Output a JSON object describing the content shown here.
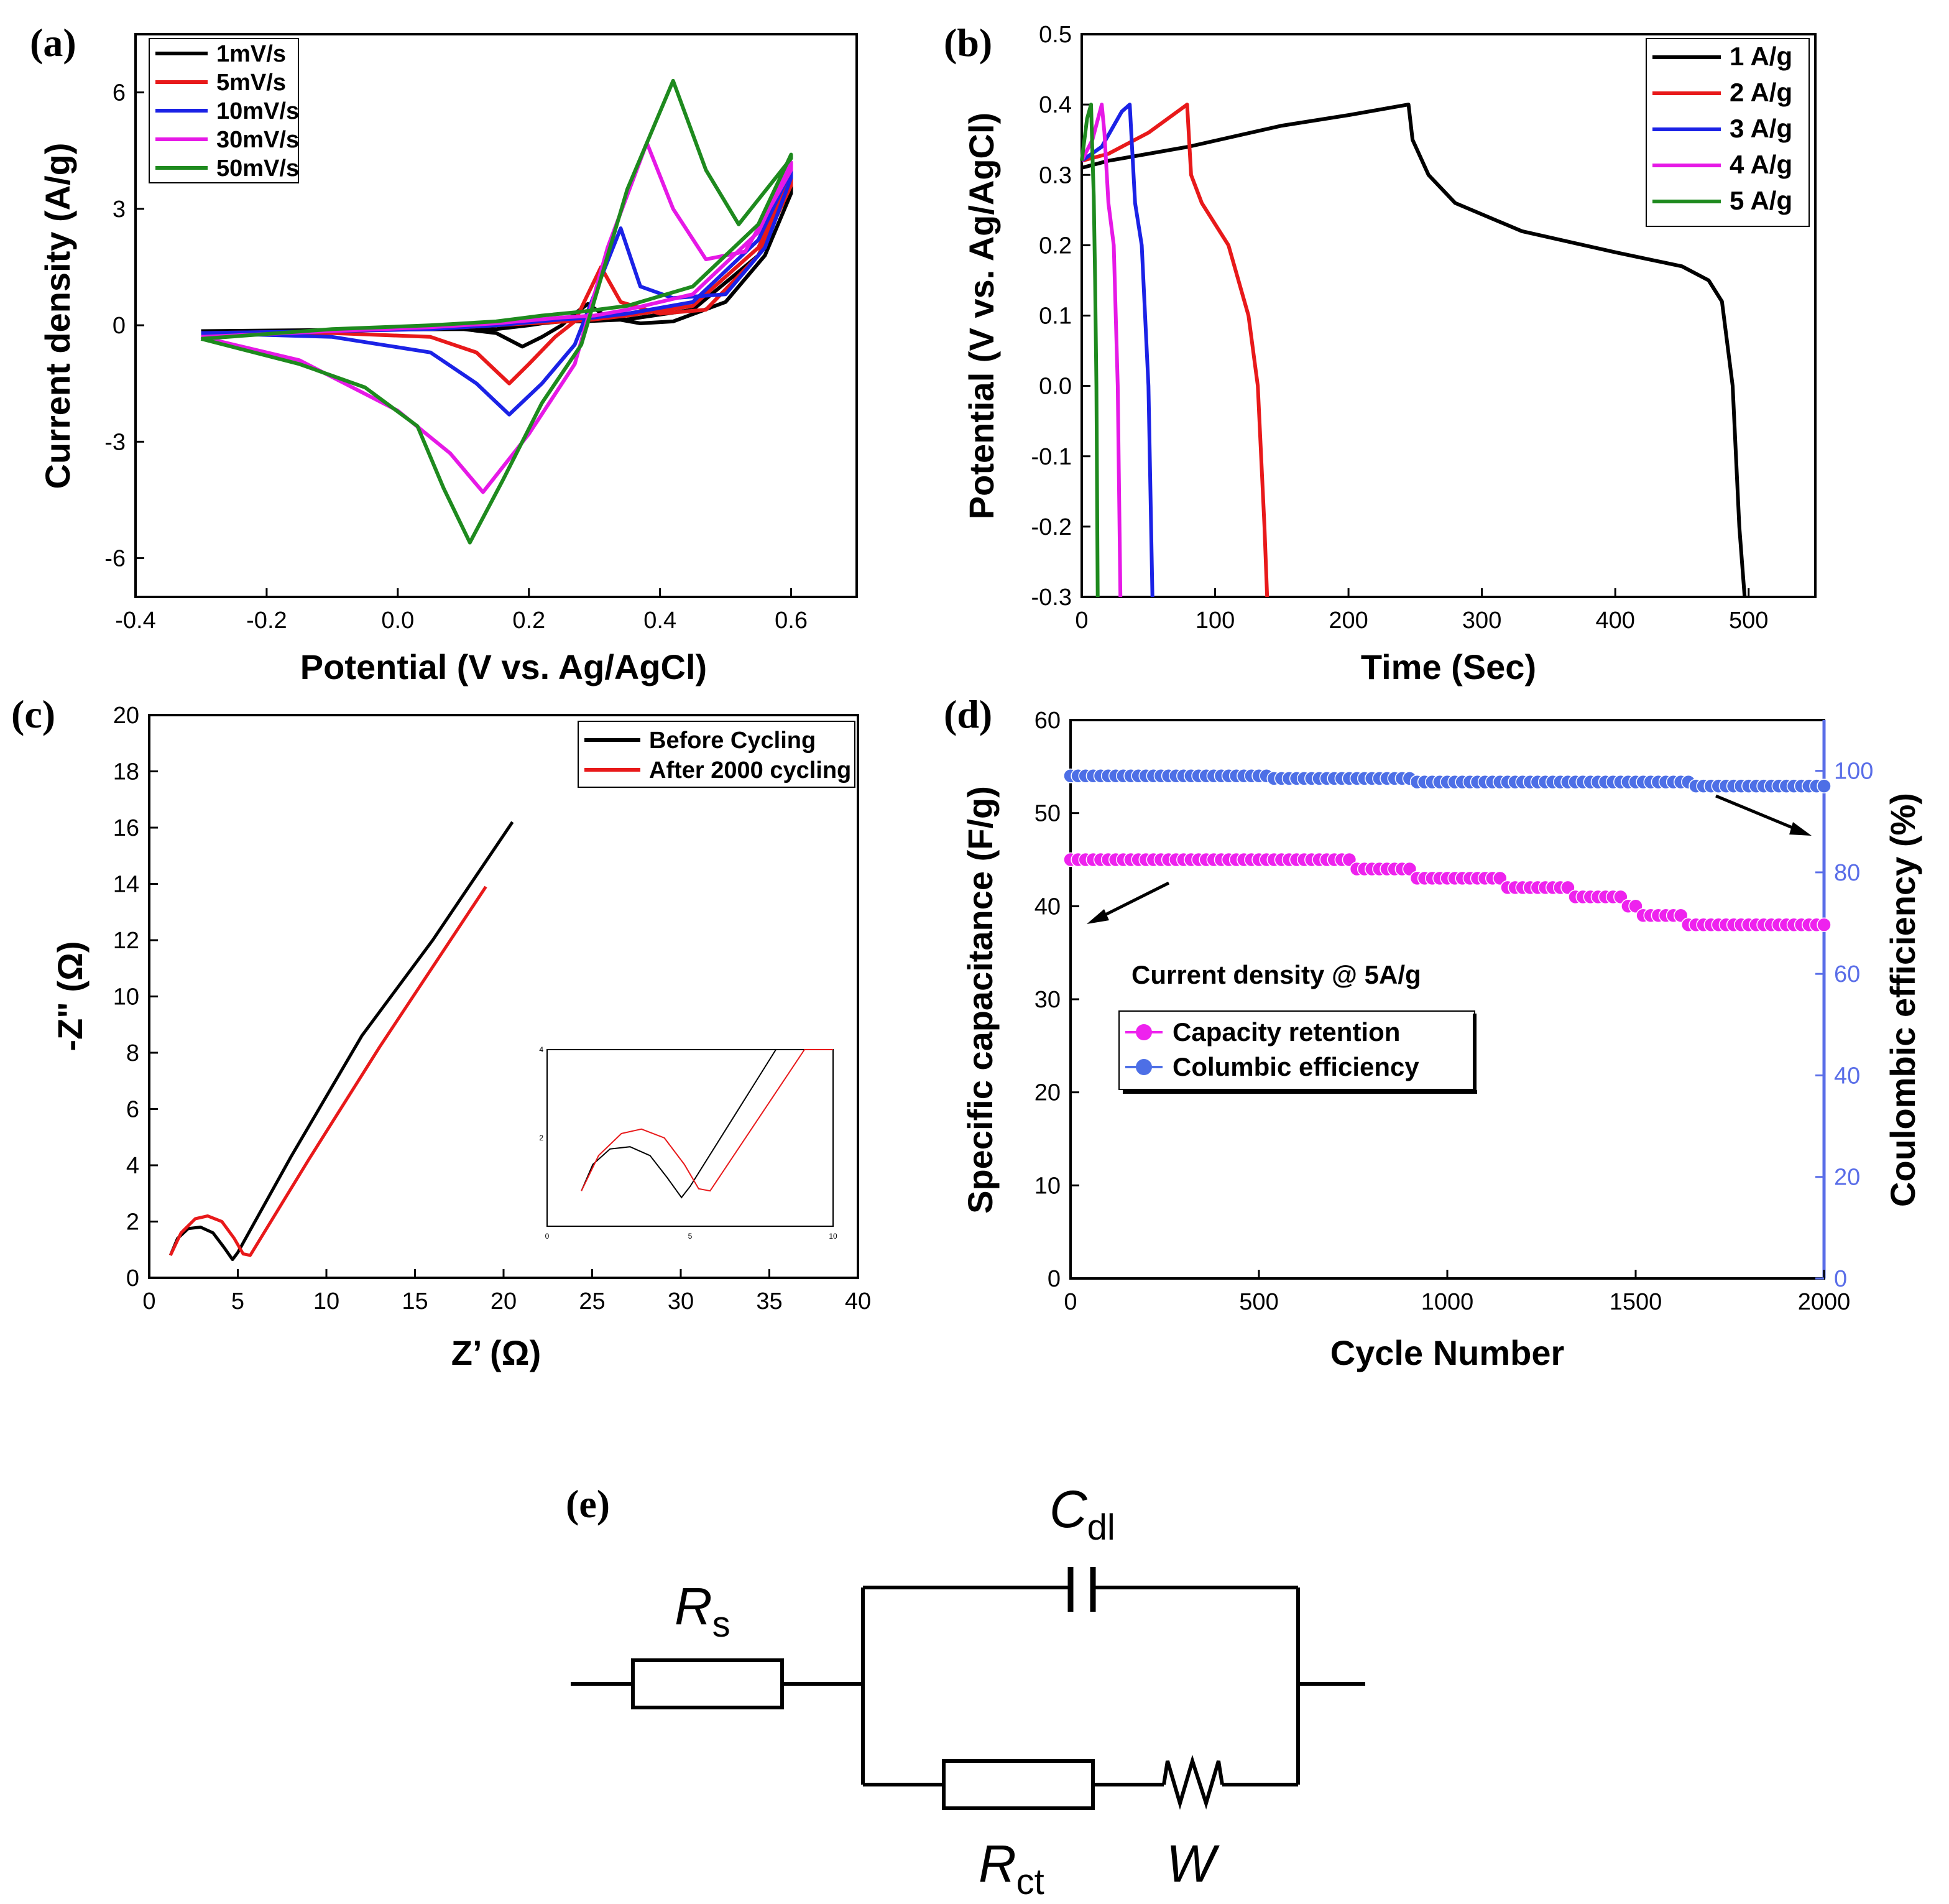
{
  "chart_data": [
    {
      "panel": "(a)",
      "type": "line",
      "xlabel": "Potential (V vs. Ag/AgCl)",
      "ylabel": "Current density (A/g)",
      "xlim": [
        -0.4,
        0.7
      ],
      "ylim": [
        -7,
        7.5
      ],
      "xticks": [
        -0.4,
        -0.2,
        0.0,
        0.2,
        0.4,
        0.6
      ],
      "yticks": [
        -6,
        -3,
        0,
        3,
        6
      ],
      "xtick_labels": [
        "-0.4",
        "-0.2",
        "0.0",
        "0.2",
        "0.4",
        "0.6"
      ],
      "ytick_labels": [
        "-6",
        "-3",
        "0",
        "3",
        "6"
      ],
      "legend_position": "top-left",
      "series": [
        {
          "name": "1mV/s",
          "color": "#000000",
          "x": [
            -0.3,
            -0.1,
            0.1,
            0.15,
            0.19,
            0.22,
            0.25,
            0.27,
            0.29,
            0.32,
            0.37,
            0.42,
            0.5,
            0.56,
            0.6,
            0.6,
            0.55,
            0.45,
            0.35,
            0.28,
            0.25,
            0.22,
            0.2,
            0.15,
            0.05,
            -0.1,
            -0.3
          ],
          "y": [
            -0.15,
            -0.12,
            -0.1,
            -0.2,
            -0.55,
            -0.3,
            0.0,
            0.3,
            0.55,
            0.2,
            0.05,
            0.1,
            0.6,
            1.8,
            3.4,
            3.6,
            1.8,
            0.4,
            0.15,
            0.1,
            0.1,
            0.05,
            0.0,
            -0.1,
            -0.1,
            -0.12,
            -0.15
          ]
        },
        {
          "name": "5mV/s",
          "color": "#e8191a",
          "x": [
            -0.3,
            -0.1,
            0.05,
            0.12,
            0.17,
            0.2,
            0.24,
            0.27,
            0.29,
            0.31,
            0.34,
            0.4,
            0.47,
            0.55,
            0.6,
            0.6,
            0.55,
            0.45,
            0.35,
            0.3,
            0.26,
            0.2,
            0.1,
            0.0,
            -0.1,
            -0.3
          ],
          "y": [
            -0.2,
            -0.2,
            -0.3,
            -0.7,
            -1.5,
            -1.0,
            -0.3,
            0.1,
            0.8,
            1.5,
            0.6,
            0.3,
            0.4,
            1.8,
            3.6,
            3.8,
            2.0,
            0.5,
            0.25,
            0.15,
            0.1,
            0.05,
            -0.05,
            -0.1,
            -0.15,
            -0.2
          ]
        },
        {
          "name": "10mV/s",
          "color": "#1b22e6",
          "x": [
            -0.3,
            -0.1,
            0.05,
            0.12,
            0.17,
            0.22,
            0.27,
            0.3,
            0.34,
            0.37,
            0.42,
            0.5,
            0.56,
            0.6,
            0.6,
            0.55,
            0.45,
            0.35,
            0.3,
            0.25,
            0.15,
            0.05,
            -0.1,
            -0.3
          ],
          "y": [
            -0.2,
            -0.3,
            -0.7,
            -1.5,
            -2.3,
            -1.5,
            -0.5,
            0.8,
            2.5,
            1.0,
            0.7,
            0.8,
            2.0,
            3.8,
            4.0,
            2.2,
            0.6,
            0.3,
            0.2,
            0.15,
            0.0,
            -0.1,
            -0.15,
            -0.2
          ]
        },
        {
          "name": "30mV/s",
          "color": "#e619e6",
          "x": [
            -0.3,
            -0.15,
            0.0,
            0.08,
            0.13,
            0.2,
            0.27,
            0.32,
            0.38,
            0.42,
            0.47,
            0.53,
            0.6,
            0.6,
            0.55,
            0.45,
            0.35,
            0.3,
            0.25,
            0.15,
            0.05,
            -0.1,
            -0.3
          ],
          "y": [
            -0.3,
            -0.9,
            -2.2,
            -3.3,
            -4.3,
            -2.8,
            -1.0,
            2.0,
            4.7,
            3.0,
            1.7,
            1.9,
            4.0,
            4.2,
            2.4,
            0.8,
            0.4,
            0.25,
            0.2,
            0.05,
            -0.05,
            -0.15,
            -0.3
          ]
        },
        {
          "name": "50mV/s",
          "color": "#1e8a1e",
          "x": [
            -0.3,
            -0.15,
            -0.05,
            0.03,
            0.07,
            0.11,
            0.16,
            0.22,
            0.28,
            0.35,
            0.42,
            0.47,
            0.52,
            0.6,
            0.6,
            0.55,
            0.45,
            0.35,
            0.28,
            0.22,
            0.15,
            0.05,
            -0.1,
            -0.3
          ],
          "y": [
            -0.35,
            -1.0,
            -1.6,
            -2.6,
            -4.2,
            -5.6,
            -4.0,
            -2.0,
            -0.5,
            3.5,
            6.3,
            4.0,
            2.6,
            4.3,
            4.4,
            2.6,
            1.0,
            0.5,
            0.35,
            0.25,
            0.1,
            0.0,
            -0.1,
            -0.35
          ]
        }
      ]
    },
    {
      "panel": "(b)",
      "type": "line",
      "xlabel": "Time (Sec)",
      "ylabel": "Potential (V vs. Ag/AgCl)",
      "xlim": [
        0,
        550
      ],
      "ylim": [
        -0.3,
        0.5
      ],
      "xticks": [
        0,
        100,
        200,
        300,
        400,
        500
      ],
      "yticks": [
        -0.3,
        -0.2,
        -0.1,
        0.0,
        0.1,
        0.2,
        0.3,
        0.4,
        0.5
      ],
      "xtick_labels": [
        "0",
        "100",
        "200",
        "300",
        "400",
        "500"
      ],
      "ytick_labels": [
        "-0.3",
        "-0.2",
        "-0.1",
        "0.0",
        "0.1",
        "0.2",
        "0.3",
        "0.4",
        "0.5"
      ],
      "legend_position": "top-right",
      "series": [
        {
          "name": "1 A/g",
          "color": "#000000",
          "x": [
            0,
            20,
            80,
            150,
            200,
            245,
            248,
            260,
            280,
            330,
            400,
            450,
            470,
            480,
            488,
            493,
            497
          ],
          "y": [
            0.31,
            0.32,
            0.34,
            0.37,
            0.385,
            0.4,
            0.35,
            0.3,
            0.26,
            0.22,
            0.19,
            0.17,
            0.15,
            0.12,
            0.0,
            -0.2,
            -0.3
          ]
        },
        {
          "name": "2 A/g",
          "color": "#e8191a",
          "x": [
            0,
            20,
            50,
            79,
            82,
            90,
            110,
            125,
            132,
            137,
            139
          ],
          "y": [
            0.32,
            0.33,
            0.36,
            0.4,
            0.3,
            0.26,
            0.2,
            0.1,
            0.0,
            -0.2,
            -0.3
          ]
        },
        {
          "name": "3 A/g",
          "color": "#1b22e6",
          "x": [
            0,
            15,
            30,
            36,
            40,
            45,
            50,
            53
          ],
          "y": [
            0.32,
            0.34,
            0.39,
            0.4,
            0.26,
            0.2,
            0.0,
            -0.3
          ]
        },
        {
          "name": "4 A/g",
          "color": "#e619e6",
          "x": [
            0,
            8,
            15,
            17,
            20,
            24,
            27,
            29
          ],
          "y": [
            0.32,
            0.35,
            0.4,
            0.36,
            0.26,
            0.2,
            0.0,
            -0.3
          ]
        },
        {
          "name": "5 A/g",
          "color": "#1e8a1e",
          "x": [
            0,
            4,
            7,
            8,
            9,
            10,
            11,
            12
          ],
          "y": [
            0.32,
            0.38,
            0.4,
            0.33,
            0.27,
            0.15,
            0.0,
            -0.3
          ]
        }
      ]
    },
    {
      "panel": "(c)",
      "type": "line",
      "xlabel": "Z’ (Ω)",
      "ylabel": "-Z\" (Ω)",
      "xlim": [
        0,
        40
      ],
      "ylim": [
        0,
        20
      ],
      "xticks": [
        0,
        5,
        10,
        15,
        20,
        25,
        30,
        35,
        40
      ],
      "yticks": [
        0,
        2,
        4,
        6,
        8,
        10,
        12,
        14,
        16,
        18,
        20
      ],
      "xtick_labels": [
        "0",
        "5",
        "10",
        "15",
        "20",
        "25",
        "30",
        "35",
        "40"
      ],
      "ytick_labels": [
        "0",
        "2",
        "4",
        "6",
        "8",
        "10",
        "12",
        "14",
        "16",
        "18",
        "20"
      ],
      "legend_position": "top-right",
      "series": [
        {
          "name": "Before Cycling",
          "color": "#000000",
          "x": [
            1.2,
            1.6,
            2.2,
            2.9,
            3.6,
            4.2,
            4.7,
            5.0,
            8.0,
            12.0,
            16.0,
            20.5
          ],
          "y": [
            0.8,
            1.4,
            1.75,
            1.8,
            1.6,
            1.1,
            0.65,
            0.9,
            4.3,
            8.6,
            12.0,
            16.2
          ]
        },
        {
          "name": "After 2000 cycling",
          "color": "#e8191a",
          "x": [
            1.2,
            1.8,
            2.6,
            3.3,
            4.1,
            4.8,
            5.3,
            5.7,
            9.0,
            13.0,
            17.0,
            19.0
          ],
          "y": [
            0.8,
            1.6,
            2.1,
            2.2,
            2.0,
            1.4,
            0.85,
            0.8,
            4.2,
            8.2,
            12.0,
            13.9
          ]
        }
      ],
      "inset": {
        "xlim": [
          0,
          10
        ],
        "ylim": [
          0,
          4
        ],
        "xtick_labels": [
          "0",
          "5",
          "10"
        ],
        "ytick_labels": [
          "2",
          "4"
        ]
      }
    },
    {
      "panel": "(d)",
      "type": "scatter",
      "xlabel": "Cycle Number",
      "ylabel": "Specific capacitance (F/g)",
      "ylabel_right": "Coulombic efficiency (%)",
      "xlim": [
        0,
        2000
      ],
      "ylim": [
        0,
        60
      ],
      "ylim_right": [
        0,
        110
      ],
      "xticks": [
        0,
        500,
        1000,
        1500,
        2000
      ],
      "yticks": [
        0,
        10,
        20,
        30,
        40,
        50,
        60
      ],
      "yticks_right": [
        0,
        20,
        40,
        60,
        80,
        100
      ],
      "xtick_labels": [
        "0",
        "500",
        "1000",
        "1500",
        "2000"
      ],
      "ytick_labels": [
        "0",
        "10",
        "20",
        "30",
        "40",
        "50",
        "60"
      ],
      "ytick_labels_right": [
        "0",
        "20",
        "40",
        "60",
        "80",
        "100"
      ],
      "annotation": "Current density @ 5A/g",
      "legend_position": "middle-left",
      "series": [
        {
          "name": "Capacity retention",
          "color": "#ee22ee",
          "axis": "left",
          "x": [
            0,
            740,
            750,
            900,
            910,
            1150,
            1160,
            1330,
            1340,
            1460,
            1480,
            1510,
            1620,
            1630,
            2000
          ],
          "y": [
            45,
            45,
            44,
            44,
            43,
            43,
            42,
            42,
            41,
            41,
            40,
            39,
            39,
            38,
            38
          ]
        },
        {
          "name": "Columbic efficiency",
          "color": "#4d6fe6",
          "axis": "right",
          "x": [
            0,
            520,
            530,
            900,
            910,
            1650,
            1660,
            2000
          ],
          "y": [
            99,
            99,
            98.5,
            98.5,
            97.8,
            97.8,
            97,
            97
          ]
        }
      ]
    }
  ],
  "panels": {
    "a": "(a)",
    "b": "(b)",
    "c": "(c)",
    "d": "(d)",
    "e": "(e)"
  },
  "circuit": {
    "labels": {
      "rs_main": "R",
      "rs_sub": "s",
      "cdl_main": "C",
      "cdl_sub": "dl",
      "rct_main": "R",
      "rct_sub": "ct",
      "w": "W"
    }
  }
}
